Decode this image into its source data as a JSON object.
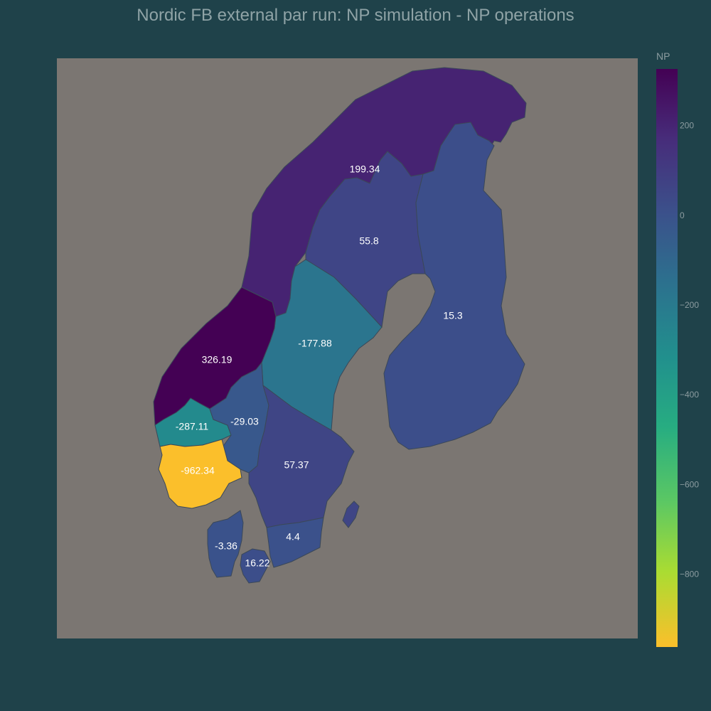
{
  "title": "Nordic FB external par run: NP simulation - NP operations",
  "colors": {
    "background": "#1f424a",
    "plot_background": "#7b7672"
  },
  "colorbar": {
    "title": "NP",
    "range": [
      -962.34,
      326.19
    ],
    "colorscale": "viridis",
    "ticks": [
      {
        "value": 200,
        "label": "200"
      },
      {
        "value": 0,
        "label": "0"
      },
      {
        "value": -200,
        "label": "−200"
      },
      {
        "value": -400,
        "label": "−400"
      },
      {
        "value": -600,
        "label": "−600"
      },
      {
        "value": -800,
        "label": "−800"
      }
    ]
  },
  "chart_data": {
    "type": "choropleth",
    "title": "Nordic FB external par run: NP simulation - NP operations",
    "colorbar_title": "NP",
    "regions": [
      {
        "id": "NO4",
        "value": 199.34,
        "label": "199.34"
      },
      {
        "id": "SE1",
        "value": 55.8,
        "label": "55.8"
      },
      {
        "id": "FI",
        "value": 15.3,
        "label": "15.3"
      },
      {
        "id": "SE2",
        "value": -177.88,
        "label": "-177.88"
      },
      {
        "id": "NO3",
        "value": 326.19,
        "label": "326.19"
      },
      {
        "id": "NO5",
        "value": -287.11,
        "label": "-287.11"
      },
      {
        "id": "NO1",
        "value": -29.03,
        "label": "-29.03"
      },
      {
        "id": "NO2",
        "value": -962.34,
        "label": "-962.34"
      },
      {
        "id": "SE3",
        "value": 57.37,
        "label": "57.37"
      },
      {
        "id": "SE4",
        "value": 4.4,
        "label": "4.4"
      },
      {
        "id": "DK1",
        "value": -3.36,
        "label": "-3.36"
      },
      {
        "id": "DK2",
        "value": 16.22,
        "label": "16.22"
      }
    ]
  }
}
